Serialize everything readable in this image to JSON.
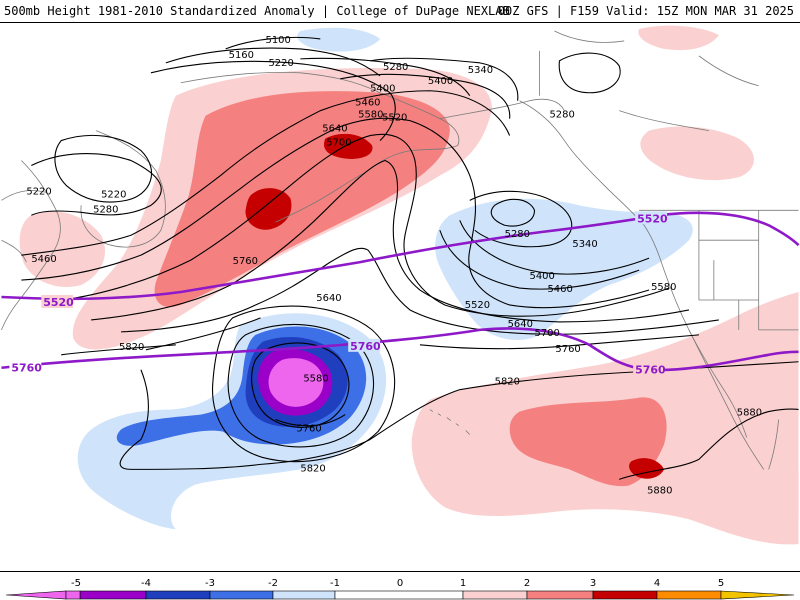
{
  "header": {
    "left_title": "500mb Height 1981-2010 Standardized Anomaly | College of DuPage NEXLAB",
    "right_title": "00Z GFS | F159 Valid: 15Z MON MAR 31 2025"
  },
  "colors": {
    "neg5": "#ee66ee",
    "neg4": "#9b00c8",
    "neg3": "#1f3fbf",
    "neg2": "#3d6fe6",
    "neg1": "#cfe3fb",
    "pos1": "#fbd0d0",
    "pos2": "#f48080",
    "pos3": "#c40000",
    "pos4": "#ff8c00",
    "pos5": "#f3c300",
    "thick_contour": "#8e19c8",
    "contour": "#000000",
    "coast": "#7a7a7a"
  },
  "map_data": {
    "contour_labels": [
      "5100",
      "5160",
      "5220",
      "5220",
      "5220",
      "5280",
      "5280",
      "5280",
      "5280",
      "5340",
      "5340",
      "5400",
      "5400",
      "5400",
      "5460",
      "5460",
      "5460",
      "5520",
      "5520",
      "5580",
      "5580",
      "5580",
      "5640",
      "5640",
      "5640",
      "5700",
      "5700",
      "5760",
      "5760",
      "5760",
      "5820",
      "5820",
      "5820",
      "5880",
      "5880"
    ],
    "highlight_labels": [
      "5520",
      "5520",
      "5760",
      "5760",
      "5760"
    ]
  },
  "colorbar": {
    "ticks": [
      "-5",
      "-4",
      "-3",
      "-2",
      "-1",
      "0",
      "1",
      "2",
      "3",
      "4",
      "5"
    ]
  }
}
